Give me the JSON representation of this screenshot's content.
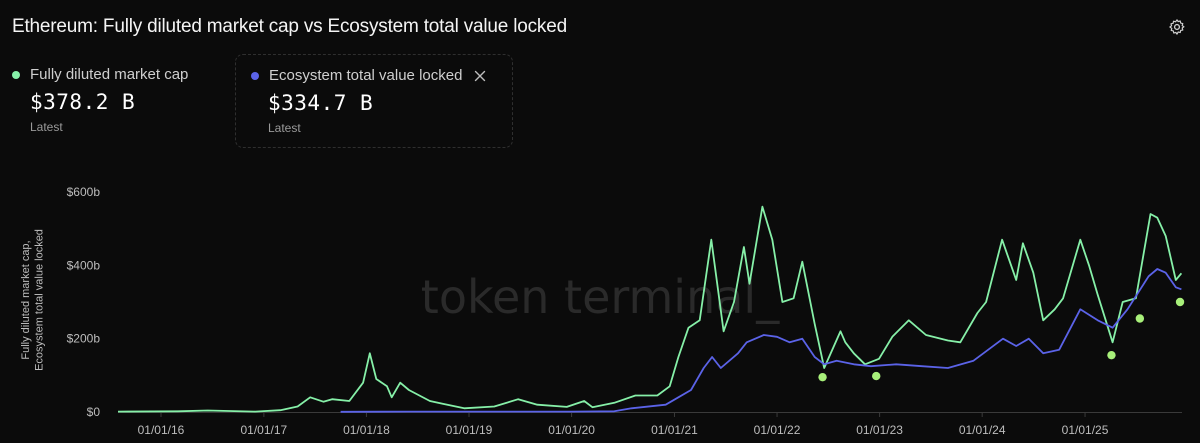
{
  "title": "Ethereum: Fully diluted market cap vs Ecosystem total value locked",
  "icons": {
    "settings": "gear-icon",
    "close": "close-icon"
  },
  "legend": [
    {
      "label": "Fully diluted market cap",
      "value": "$378.2 B",
      "sub": "Latest",
      "color": "#86f0a8"
    },
    {
      "label": "Ecosystem total value locked",
      "value": "$334.7 B",
      "sub": "Latest",
      "color": "#5b63e8"
    }
  ],
  "watermark": "token terminal_",
  "chart_data": {
    "type": "line",
    "ylabel": "Fully diluted market cap, Ecosystem total value locked",
    "ylim": [
      0,
      600
    ],
    "yticks": [
      "$0",
      "$200b",
      "$400b",
      "$600b"
    ],
    "xticks": [
      "01/01/16",
      "01/01/17",
      "01/01/18",
      "01/01/19",
      "01/01/20",
      "01/01/21",
      "01/01/22",
      "01/01/23",
      "01/01/24",
      "01/01/25"
    ],
    "grid": false,
    "series": [
      {
        "name": "Fully diluted market cap",
        "color": "#86f0a8",
        "points": [
          [
            "2015-08-01",
            1
          ],
          [
            "2016-03-01",
            2
          ],
          [
            "2016-06-15",
            4
          ],
          [
            "2016-12-01",
            1
          ],
          [
            "2017-03-01",
            5
          ],
          [
            "2017-05-01",
            15
          ],
          [
            "2017-06-15",
            40
          ],
          [
            "2017-08-01",
            28
          ],
          [
            "2017-09-01",
            35
          ],
          [
            "2017-11-01",
            30
          ],
          [
            "2017-12-20",
            80
          ],
          [
            "2018-01-13",
            160
          ],
          [
            "2018-02-05",
            90
          ],
          [
            "2018-03-15",
            70
          ],
          [
            "2018-04-01",
            40
          ],
          [
            "2018-05-01",
            80
          ],
          [
            "2018-06-01",
            60
          ],
          [
            "2018-08-15",
            30
          ],
          [
            "2018-10-01",
            22
          ],
          [
            "2018-12-15",
            10
          ],
          [
            "2019-04-01",
            15
          ],
          [
            "2019-06-25",
            35
          ],
          [
            "2019-09-01",
            20
          ],
          [
            "2019-12-15",
            14
          ],
          [
            "2020-02-15",
            30
          ],
          [
            "2020-03-15",
            13
          ],
          [
            "2020-06-01",
            25
          ],
          [
            "2020-08-15",
            45
          ],
          [
            "2020-11-01",
            45
          ],
          [
            "2020-12-15",
            70
          ],
          [
            "2021-01-15",
            150
          ],
          [
            "2021-02-20",
            230
          ],
          [
            "2021-04-01",
            250
          ],
          [
            "2021-05-12",
            470
          ],
          [
            "2021-06-25",
            220
          ],
          [
            "2021-08-01",
            300
          ],
          [
            "2021-09-05",
            450
          ],
          [
            "2021-09-25",
            350
          ],
          [
            "2021-11-10",
            560
          ],
          [
            "2021-12-15",
            470
          ],
          [
            "2022-01-20",
            300
          ],
          [
            "2022-03-01",
            310
          ],
          [
            "2022-04-01",
            410
          ],
          [
            "2022-05-15",
            240
          ],
          [
            "2022-06-18",
            120
          ],
          [
            "2022-08-15",
            220
          ],
          [
            "2022-09-01",
            190
          ],
          [
            "2022-10-01",
            160
          ],
          [
            "2022-11-10",
            130
          ],
          [
            "2022-12-30",
            145
          ],
          [
            "2023-02-15",
            205
          ],
          [
            "2023-04-15",
            250
          ],
          [
            "2023-06-15",
            210
          ],
          [
            "2023-09-01",
            195
          ],
          [
            "2023-10-15",
            190
          ],
          [
            "2023-12-15",
            270
          ],
          [
            "2024-01-15",
            300
          ],
          [
            "2024-03-12",
            470
          ],
          [
            "2024-05-01",
            360
          ],
          [
            "2024-05-25",
            460
          ],
          [
            "2024-07-01",
            380
          ],
          [
            "2024-08-05",
            250
          ],
          [
            "2024-09-15",
            280
          ],
          [
            "2024-10-15",
            310
          ],
          [
            "2024-12-15",
            470
          ],
          [
            "2025-01-15",
            400
          ],
          [
            "2025-02-15",
            320
          ],
          [
            "2025-04-09",
            190
          ],
          [
            "2025-05-15",
            300
          ],
          [
            "2025-07-01",
            310
          ],
          [
            "2025-08-22",
            540
          ],
          [
            "2025-09-15",
            530
          ],
          [
            "2025-10-15",
            480
          ],
          [
            "2025-11-20",
            360
          ],
          [
            "2025-12-10",
            378.2
          ]
        ]
      },
      {
        "name": "Ecosystem total value locked",
        "color": "#5b63e8",
        "points": [
          [
            "2017-10-01",
            0.5
          ],
          [
            "2018-06-01",
            1
          ],
          [
            "2019-06-01",
            1
          ],
          [
            "2020-01-01",
            1
          ],
          [
            "2020-06-01",
            2
          ],
          [
            "2020-08-01",
            10
          ],
          [
            "2020-12-01",
            20
          ],
          [
            "2021-01-15",
            40
          ],
          [
            "2021-03-01",
            60
          ],
          [
            "2021-04-15",
            120
          ],
          [
            "2021-05-15",
            150
          ],
          [
            "2021-06-15",
            120
          ],
          [
            "2021-08-15",
            160
          ],
          [
            "2021-09-15",
            190
          ],
          [
            "2021-11-15",
            210
          ],
          [
            "2022-01-01",
            205
          ],
          [
            "2022-02-15",
            190
          ],
          [
            "2022-04-01",
            200
          ],
          [
            "2022-05-15",
            150
          ],
          [
            "2022-06-18",
            130
          ],
          [
            "2022-08-01",
            140
          ],
          [
            "2022-10-01",
            130
          ],
          [
            "2022-12-01",
            125
          ],
          [
            "2023-03-01",
            130
          ],
          [
            "2023-06-01",
            125
          ],
          [
            "2023-09-01",
            120
          ],
          [
            "2023-12-01",
            140
          ],
          [
            "2024-03-15",
            200
          ],
          [
            "2024-05-01",
            180
          ],
          [
            "2024-06-15",
            200
          ],
          [
            "2024-08-05",
            160
          ],
          [
            "2024-10-01",
            170
          ],
          [
            "2024-12-15",
            280
          ],
          [
            "2025-02-15",
            250
          ],
          [
            "2025-04-09",
            230
          ],
          [
            "2025-06-01",
            280
          ],
          [
            "2025-08-15",
            370
          ],
          [
            "2025-09-15",
            390
          ],
          [
            "2025-10-15",
            380
          ],
          [
            "2025-11-20",
            340
          ],
          [
            "2025-12-10",
            334.7
          ]
        ]
      }
    ],
    "markers": [
      {
        "date": "2022-06-12",
        "value": 95,
        "color": "#a8f07a"
      },
      {
        "date": "2022-12-20",
        "value": 98,
        "color": "#a8f07a"
      },
      {
        "date": "2025-04-05",
        "value": 155,
        "color": "#a8f07a"
      },
      {
        "date": "2025-07-15",
        "value": 255,
        "color": "#a8f07a"
      },
      {
        "date": "2025-12-05",
        "value": 300,
        "color": "#a8f07a"
      }
    ]
  }
}
